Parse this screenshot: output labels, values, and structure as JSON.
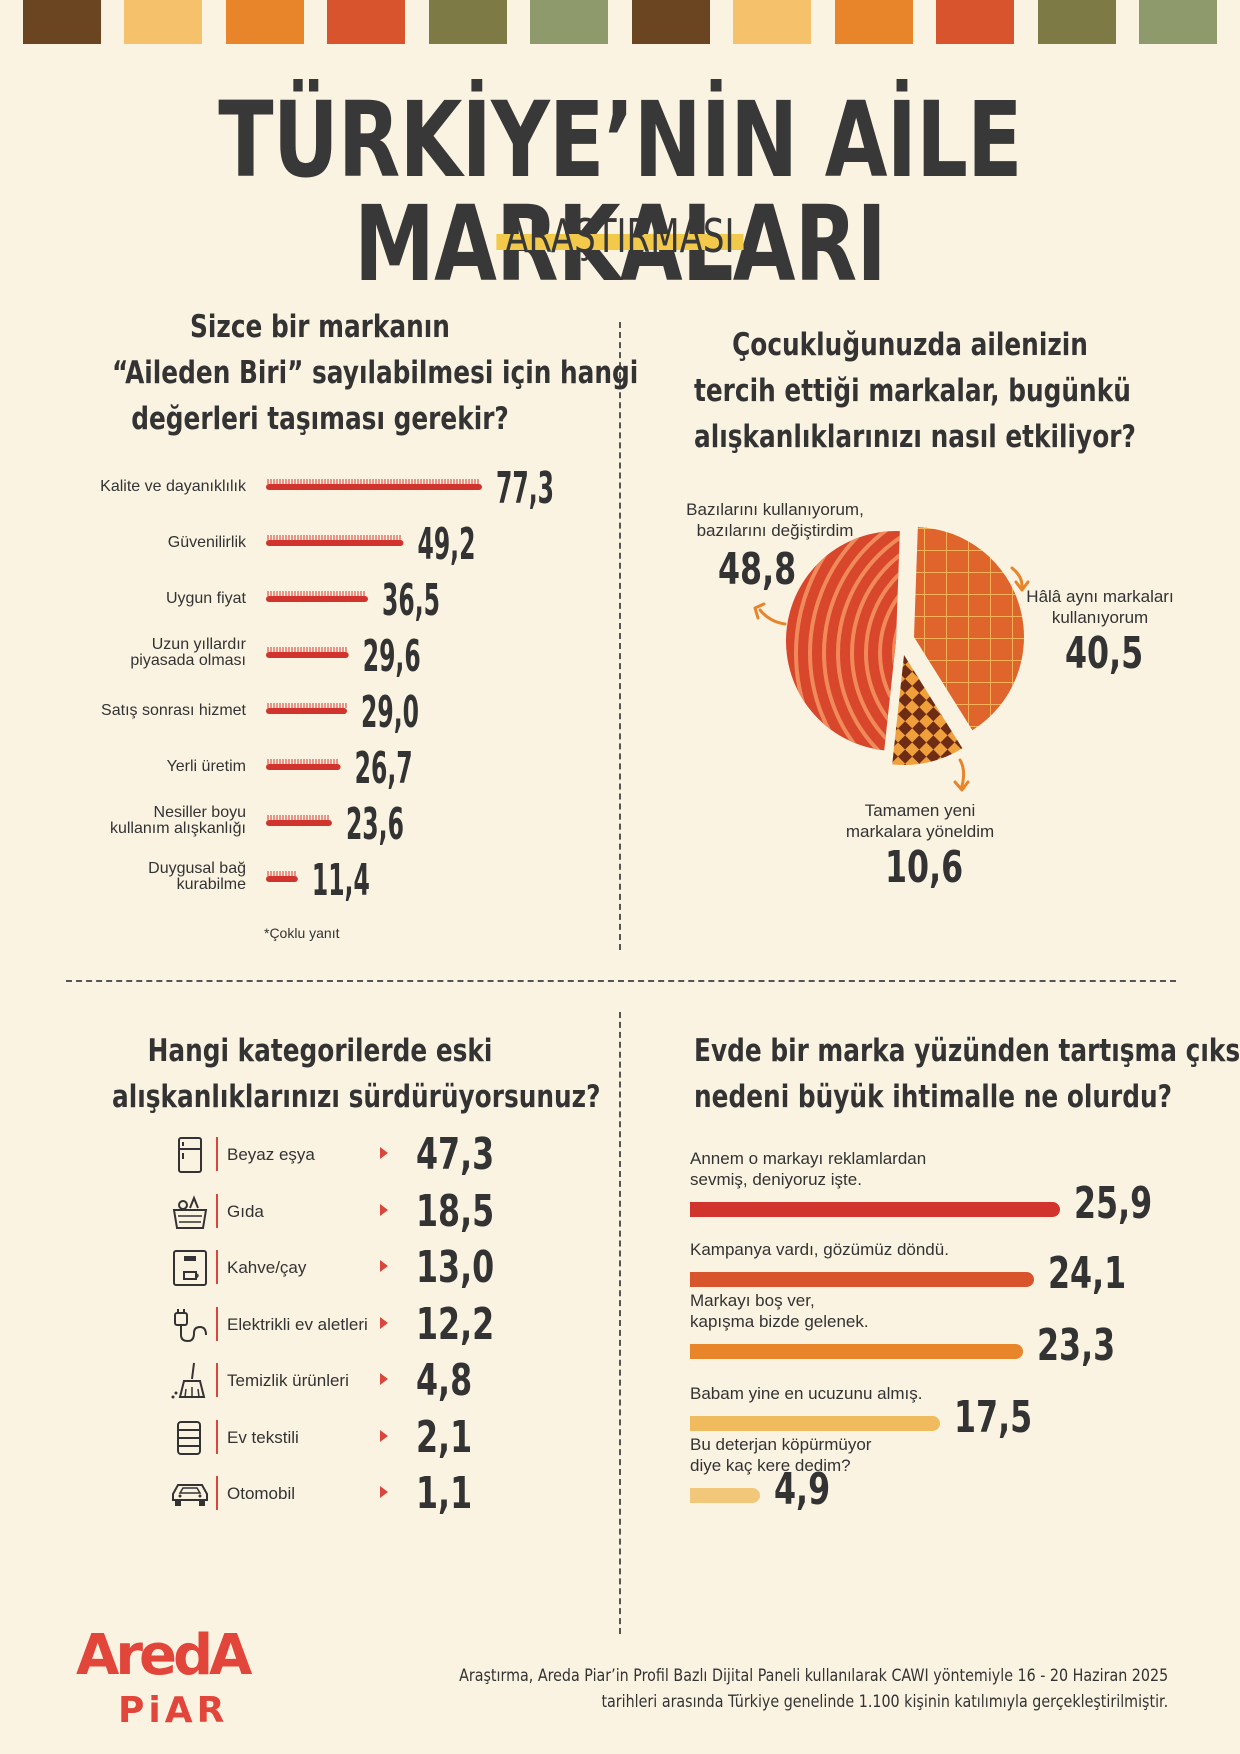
{
  "palette": [
    "#6b4422",
    "#f5c26b",
    "#e8842a",
    "#d8542c",
    "#7d7a45",
    "#8f9a6c",
    "#6b4422",
    "#f5c26b",
    "#e8842a",
    "#d8542c",
    "#7d7a45",
    "#8f9a6c"
  ],
  "header": {
    "title": "TÜRKİYE’NİN AİLE MARKALARI",
    "subtitle": "ARAŞTIRMASI"
  },
  "q1": {
    "title_lines": [
      "Sizce bir markanın",
      "“Aileden Biri” sayılabilmesi için hangi",
      "değerleri taşıması gerekir?"
    ],
    "note": "*Çoklu yanıt"
  },
  "q2": {
    "title_lines": [
      "Çocukluğunuzda ailenizin",
      "tercih ettiği markalar, bugünkü",
      "alışkanlıklarınızı nasıl etkiliyor?"
    ]
  },
  "q3": {
    "title_lines": [
      "Hangi kategorilerde eski",
      "alışkanlıklarınızı sürdürüyorsunuz?"
    ],
    "icons": [
      "fridge-icon",
      "food-basket-icon",
      "coffee-machine-icon",
      "electric-plug-icon",
      "cleaning-broom-icon",
      "towels-icon",
      "car-icon"
    ]
  },
  "q4": {
    "title_lines": [
      "Evde bir marka yüzünden tartışma çıksa,",
      "nedeni büyük ihtimalle ne olurdu?"
    ]
  },
  "chart_data": [
    {
      "type": "bar",
      "orientation": "horizontal",
      "categories": [
        [
          "Kalite ve dayanıklılık"
        ],
        [
          "Güvenilirlik"
        ],
        [
          "Uygun fiyat"
        ],
        [
          "Uzun yıllardır",
          "piyasada olması"
        ],
        [
          "Satış sonrası hizmet"
        ],
        [
          "Yerli üretim"
        ],
        [
          "Nesiller boyu",
          "kullanım alışkanlığı"
        ],
        [
          "Duygusal bağ",
          "kurabilme"
        ]
      ],
      "values": [
        77.3,
        49.2,
        36.5,
        29.6,
        29.0,
        26.7,
        23.6,
        11.4
      ],
      "value_labels": [
        "77,3",
        "49,2",
        "36,5",
        "29,6",
        "29,0",
        "26,7",
        "23,6",
        "11,4"
      ],
      "color": "#d0342c"
    },
    {
      "type": "pie",
      "slices": [
        {
          "label": [
            "Bazılarını kullanıyorum,",
            "bazılarını değiştirdim"
          ],
          "value": 48.8,
          "value_label": "48,8",
          "color": "#d8462c"
        },
        {
          "label": [
            "Hâlâ aynı markaları",
            "kullanıyorum"
          ],
          "value": 40.5,
          "value_label": "40,5",
          "color": "#e0652c"
        },
        {
          "label": [
            "Tamamen yeni",
            "markalara yöneldim"
          ],
          "value": 10.6,
          "value_label": "10,6",
          "color": "#8a3a1c"
        }
      ]
    },
    {
      "type": "bar",
      "orientation": "horizontal",
      "categories": [
        "Beyaz eşya",
        "Gıda",
        "Kahve/çay",
        "Elektrikli ev aletleri",
        "Temizlik ürünleri",
        "Ev tekstili",
        "Otomobil"
      ],
      "values": [
        47.3,
        18.5,
        13.0,
        12.2,
        4.8,
        2.1,
        1.1
      ],
      "value_labels": [
        "47,3",
        "18,5",
        "13,0",
        "12,2",
        "4,8",
        "2,1",
        "1,1"
      ]
    },
    {
      "type": "bar",
      "orientation": "horizontal",
      "categories": [
        [
          "Annem o markayı reklamlardan",
          "sevmiş, deniyoruz işte."
        ],
        [
          "Kampanya vardı, gözümüz döndü."
        ],
        [
          "Markayı boş ver,",
          "kapışma bizde gelenek."
        ],
        [
          "Babam yine en ucuzunu almış."
        ],
        [
          "Bu deterjan köpürmüyor",
          "diye kaç kere dedim?"
        ]
      ],
      "values": [
        25.9,
        24.1,
        23.3,
        17.5,
        4.9
      ],
      "value_labels": [
        "25,9",
        "24,1",
        "23,3",
        "17,5",
        "4,9"
      ],
      "colors": [
        "#d0342c",
        "#d8542c",
        "#e8842a",
        "#f0bb5f",
        "#f3c77a"
      ]
    }
  ],
  "footer": {
    "logo_top": "AredA",
    "logo_bottom": "PiAR",
    "lines": [
      "Araştırma, Areda Piar’in Profil Bazlı Dijital Paneli kullanılarak CAWI yöntemiyle 16 - 20 Haziran 2025",
      "tarihleri arasında Türkiye genelinde 1.100 kişinin katılımıyla gerçekleştirilmiştir."
    ]
  }
}
